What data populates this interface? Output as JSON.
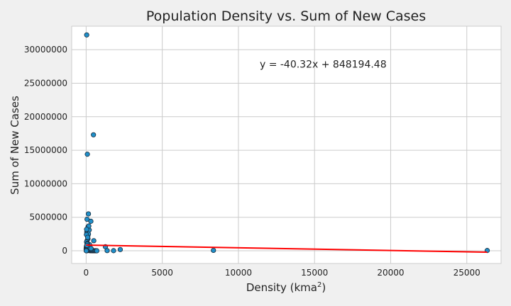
{
  "chart_data": {
    "type": "scatter",
    "title": "Population Density vs. Sum of New Cases",
    "xlabel_base": "Density (kma",
    "xlabel_sup": "2",
    "xlabel_tail": ")",
    "ylabel": "Sum of New Cases",
    "xlim": [
      -950,
      27250
    ],
    "ylim": [
      -1900000,
      33500000
    ],
    "x_ticks": [
      0,
      5000,
      10000,
      15000,
      20000,
      25000
    ],
    "x_tick_labels": [
      "0",
      "5000",
      "10000",
      "15000",
      "20000",
      "25000"
    ],
    "y_ticks": [
      0,
      5000000,
      10000000,
      15000000,
      20000000,
      25000000,
      30000000
    ],
    "y_tick_labels": [
      "0",
      "5000000",
      "10000000",
      "15000000",
      "20000000",
      "25000000",
      "30000000"
    ],
    "grid": true,
    "point_color": "#1f8fc9",
    "point_edge_color": "#1a2a3a",
    "regression": {
      "slope": -40.32,
      "intercept": 848194.48,
      "equation": "y = -40.32x + 848194.48",
      "color": "#ff0000",
      "x_range": [
        0,
        26340
      ],
      "label_x": 11400,
      "label_y": 27300000
    },
    "series": [
      {
        "x": [
          36,
          480,
          80,
          60,
          150,
          40,
          90,
          130,
          310,
          200,
          110,
          150,
          20,
          120,
          60,
          230,
          30,
          80,
          95,
          500,
          25,
          45,
          15,
          10,
          5,
          3,
          60,
          85,
          105,
          125,
          140,
          160,
          180,
          210,
          240,
          270,
          300,
          330,
          360,
          400,
          450,
          500,
          550,
          600,
          650,
          700,
          35,
          55,
          75,
          20,
          12,
          8,
          140,
          220,
          320,
          1265,
          8360,
          26340,
          1380,
          1800,
          2240,
          100,
          175,
          65,
          45,
          30
        ],
        "y": [
          32200000,
          17300000,
          14400000,
          4700000,
          5500000,
          2800000,
          3000000,
          3600000,
          4400000,
          3100000,
          2200000,
          2500000,
          2400000,
          1800000,
          1500000,
          900000,
          1300000,
          1100000,
          800000,
          1500000,
          700000,
          600000,
          500000,
          400000,
          300000,
          200000,
          450000,
          380000,
          250000,
          180000,
          120000,
          90000,
          60000,
          40000,
          30000,
          20000,
          15000,
          10000,
          8000,
          5000,
          3000,
          2000,
          1000,
          500,
          300,
          100,
          50000,
          25000,
          12000,
          6000,
          3500,
          1500,
          700000,
          550000,
          350000,
          600000,
          60000,
          40000,
          20000,
          15000,
          180000,
          2000000,
          3700000,
          1000000,
          800000,
          3200000
        ]
      }
    ]
  }
}
